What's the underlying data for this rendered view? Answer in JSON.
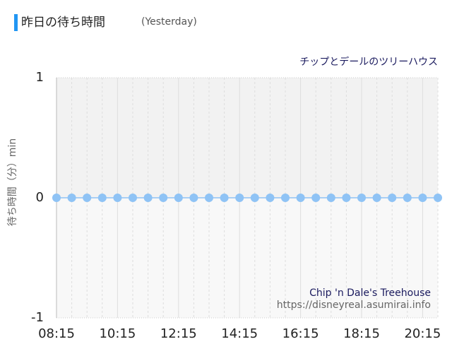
{
  "chart_data": {
    "type": "line",
    "title": "昨日の待ち時間",
    "subtitle": "(Yesterday)",
    "chart_title": "チップとデールのツリーハウス",
    "y_label": "待ち時間（分）min",
    "credit": "Chip 'n Dale's Treehouse",
    "source": "https://disneyreal.asumirai.info",
    "categories": [
      "08:15",
      null,
      null,
      null,
      "10:15",
      null,
      null,
      null,
      "12:15",
      null,
      null,
      null,
      "14:15",
      null,
      null,
      null,
      "16:15",
      null,
      null,
      null,
      "18:15",
      null,
      null,
      null,
      "20:15",
      null
    ],
    "series": [
      {
        "name": "待ち時間",
        "color": "#8fc3f5",
        "values": [
          0,
          0,
          0,
          0,
          0,
          0,
          0,
          0,
          0,
          0,
          0,
          0,
          0,
          0,
          0,
          0,
          0,
          0,
          0,
          0,
          0,
          0,
          0,
          0,
          0,
          0
        ]
      }
    ],
    "ylim": [
      -1,
      1
    ],
    "yticks": [
      -1,
      0,
      1
    ],
    "grid": true
  }
}
